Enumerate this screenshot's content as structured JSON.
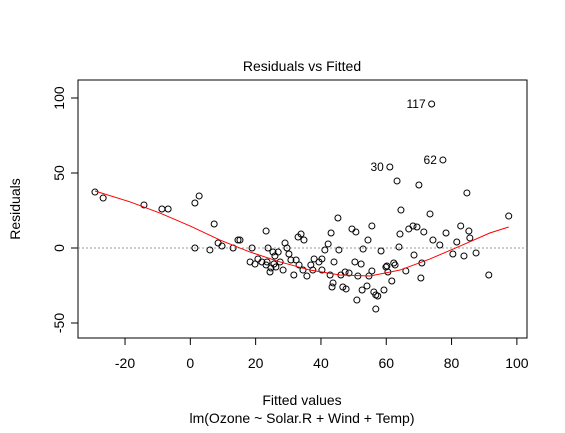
{
  "chart_data": {
    "type": "scatter",
    "title": "Residuals vs Fitted",
    "x_label": "Fitted values",
    "subtitle": "lm(Ozone ~ Solar.R + Wind + Temp)",
    "y_label": "Residuals",
    "xlim": [
      -34.4,
      103.1
    ],
    "ylim": [
      -60,
      112
    ],
    "xticks": [
      -20,
      0,
      20,
      40,
      60,
      80,
      100
    ],
    "yticks": [
      -50,
      0,
      50,
      100
    ],
    "reference_line": 0,
    "x": [
      -29.2,
      -26.7,
      -14.2,
      -8.7,
      -6.8,
      1.4,
      2.7,
      1.4,
      6.0,
      7.3,
      8.5,
      9.7,
      13.1,
      14.6,
      15.2,
      18.9,
      18.3,
      19.8,
      20.7,
      21.9,
      23.2,
      23.8,
      23.5,
      24.4,
      23.2,
      24.7,
      25.6,
      25.9,
      25.3,
      26.9,
      26.2,
      27.5,
      28.4,
      29.0,
      29.6,
      30.2,
      30.8,
      31.7,
      32.4,
      33.0,
      33.9,
      34.8,
      33.3,
      34.5,
      35.7,
      36.9,
      37.5,
      37.9,
      39.4,
      40.3,
      40.3,
      41.2,
      42.2,
      42.8,
      43.1,
      43.7,
      43.4,
      44.0,
      45.2,
      45.5,
      46.1,
      46.7,
      47.7,
      47.4,
      48.6,
      49.5,
      50.7,
      50.4,
      51.3,
      51.0,
      52.3,
      52.6,
      52.9,
      54.1,
      54.4,
      54.7,
      55.6,
      55.6,
      56.8,
      56.8,
      56.2,
      57.4,
      58.4,
      59.3,
      59.9,
      60.2,
      60.5,
      61.1,
      61.7,
      62.3,
      62.7,
      63.3,
      63.9,
      64.5,
      64.2,
      66.0,
      66.9,
      68.2,
      68.5,
      69.4,
      70.0,
      70.6,
      70.9,
      71.5,
      73.4,
      73.9,
      74.3,
      76.4,
      77.35,
      78.3,
      80.4,
      81.6,
      82.8,
      83.8,
      84.7,
      85.3,
      85.6,
      87.5,
      91.4,
      97.5
    ],
    "series": [
      {
        "color": "#000000",
        "values": [
          37.3,
          33.3,
          28.7,
          26,
          26,
          30,
          34.7,
          0,
          -1.3,
          16,
          3.3,
          1.3,
          0,
          5.3,
          5.3,
          0,
          -9.3,
          -10.7,
          -7.3,
          -9.3,
          11.3,
          0,
          -9.3,
          -16,
          -11.3,
          -13.3,
          -10.7,
          -5.3,
          -2.7,
          -2.7,
          -12.7,
          -9.3,
          -14.7,
          3.3,
          0,
          -4,
          -8,
          -18,
          -8,
          7.3,
          9.3,
          5.3,
          -11.3,
          -14.7,
          -18.7,
          -11.3,
          -14.7,
          -7.3,
          -9.3,
          -7.3,
          -14.7,
          -1.3,
          2.7,
          -18,
          10,
          -23.3,
          -26,
          -9.3,
          20,
          -1.3,
          -18,
          -26,
          -27.3,
          -16,
          -16.7,
          12.7,
          10.7,
          -9.3,
          -18.7,
          -34.7,
          -10.7,
          -28,
          -0.7,
          -25.3,
          5.3,
          -18.7,
          -15.3,
          14.7,
          -40.7,
          -31.3,
          -29.3,
          -32,
          -2,
          -28,
          -12.7,
          -12,
          -16,
          54,
          -22,
          -10,
          -11.3,
          44.7,
          0.7,
          25.3,
          9.3,
          -15.3,
          12.7,
          14.7,
          -4.7,
          14,
          42,
          -20,
          -10,
          10.7,
          22.7,
          96,
          5.3,
          2,
          58.7,
          10,
          -4,
          4,
          14.7,
          -5.3,
          36.7,
          11.3,
          6.7,
          -3.3,
          -18,
          21.3
        ]
      }
    ],
    "smoother": {
      "color": "#ff0000",
      "x": [
        -29.2,
        -18.4,
        -9.3,
        -0.1,
        9.1,
        18.3,
        27.5,
        36.6,
        45.8,
        55.0,
        64.2,
        73.4,
        82.6,
        91.7,
        97.5
      ],
      "values": [
        38,
        30.7,
        23.3,
        14.7,
        5.3,
        -2.7,
        -9.3,
        -14.7,
        -18,
        -18.7,
        -14.7,
        -7.3,
        1.3,
        10,
        14
      ]
    },
    "annotations": [
      {
        "text": "117",
        "x": 73.9,
        "y": 96
      },
      {
        "text": "30",
        "x": 61.1,
        "y": 54
      },
      {
        "text": "62",
        "x": 77.35,
        "y": 58.7
      }
    ]
  }
}
